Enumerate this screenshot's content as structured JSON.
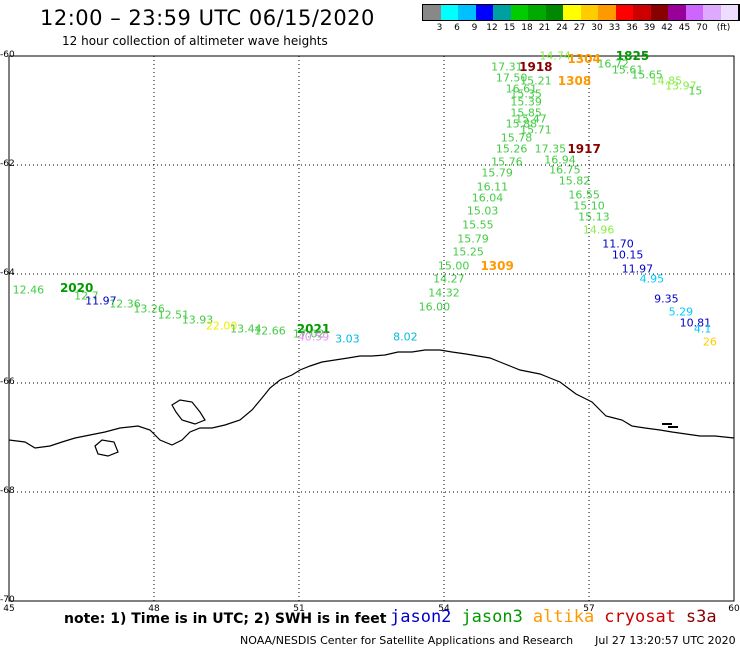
{
  "title": "12:00 – 23:59 UTC 06/15/2020",
  "subtitle": "12 hour collection of altimeter wave heights",
  "legend": {
    "colors": [
      "#888888",
      "#00ffff",
      "#00c0ff",
      "#0000ff",
      "#00a0a0",
      "#00cc00",
      "#00aa00",
      "#008800",
      "#ffff00",
      "#ffcc00",
      "#ff9900",
      "#ff0000",
      "#cc0000",
      "#880000",
      "#990099",
      "#cc66ff",
      "#ddaaff",
      "#eeddff",
      "#000000"
    ],
    "ticks": [
      "3",
      "6",
      "9",
      "12",
      "15",
      "18",
      "21",
      "24",
      "27",
      "30",
      "33",
      "36",
      "39",
      "42",
      "45",
      "70"
    ],
    "unit": "(ft)"
  },
  "axes": {
    "lon_ticks": [
      "45",
      "48",
      "51",
      "54",
      "57",
      "60"
    ],
    "lat_ticks": [
      "-60",
      "-62",
      "-64",
      "-66",
      "-68",
      "-70"
    ]
  },
  "note": "note: 1) Time is in UTC; 2) SWH is in feet",
  "satellites": [
    {
      "name": "jason2",
      "color": "#0000cc"
    },
    {
      "name": "jason3",
      "color": "#009900"
    },
    {
      "name": "altika",
      "color": "#ff9900"
    },
    {
      "name": "cryosat",
      "color": "#cc0000"
    },
    {
      "name": "s3a",
      "color": "#880000"
    }
  ],
  "credit": "NOAA/NESDIS Center for Satellite Applications and Research",
  "timestamp": "Jul 27 13:20:57 UTC 2020",
  "observations": [
    {
      "text": "12.46",
      "lon": 45.4,
      "lat": -64.3,
      "color": "#44cc44"
    },
    {
      "text": "2020",
      "lon": 46.4,
      "lat": -64.25,
      "color": "#009900",
      "bold": true
    },
    {
      "text": "12.7",
      "lon": 46.6,
      "lat": -64.4,
      "color": "#44cc44"
    },
    {
      "text": "11.97",
      "lon": 46.9,
      "lat": -64.5,
      "color": "#0000cc"
    },
    {
      "text": "12.36",
      "lon": 47.4,
      "lat": -64.55,
      "color": "#44cc44"
    },
    {
      "text": "13.26",
      "lon": 47.9,
      "lat": -64.65,
      "color": "#44cc44"
    },
    {
      "text": "12.51",
      "lon": 48.4,
      "lat": -64.75,
      "color": "#44cc44"
    },
    {
      "text": "13.93",
      "lon": 48.9,
      "lat": -64.85,
      "color": "#44cc44"
    },
    {
      "text": "22.00",
      "lon": 49.4,
      "lat": -64.95,
      "color": "#eeee00"
    },
    {
      "text": "13.44",
      "lon": 49.9,
      "lat": -65.0,
      "color": "#44cc44"
    },
    {
      "text": "12.66",
      "lon": 50.4,
      "lat": -65.05,
      "color": "#44cc44"
    },
    {
      "text": "2021",
      "lon": 51.3,
      "lat": -65.0,
      "color": "#009900",
      "bold": true
    },
    {
      "text": "17.02",
      "lon": 51.2,
      "lat": -65.1,
      "color": "#44cc44"
    },
    {
      "text": "40.59",
      "lon": 51.3,
      "lat": -65.15,
      "color": "#ee88ff"
    },
    {
      "text": "3.03",
      "lon": 52.0,
      "lat": -65.2,
      "color": "#00bbdd"
    },
    {
      "text": "8.02",
      "lon": 53.2,
      "lat": -65.15,
      "color": "#00bbdd"
    },
    {
      "text": "16.00",
      "lon": 53.8,
      "lat": -64.6,
      "color": "#44cc44"
    },
    {
      "text": "14.32",
      "lon": 54.0,
      "lat": -64.35,
      "color": "#44cc44"
    },
    {
      "text": "14.27",
      "lon": 54.1,
      "lat": -64.1,
      "color": "#44cc44"
    },
    {
      "text": "15.00",
      "lon": 54.2,
      "lat": -63.85,
      "color": "#44cc44"
    },
    {
      "text": "1309",
      "lon": 55.1,
      "lat": -63.85,
      "color": "#ff9900",
      "bold": true
    },
    {
      "text": "15.25",
      "lon": 54.5,
      "lat": -63.6,
      "color": "#44cc44"
    },
    {
      "text": "15.79",
      "lon": 54.6,
      "lat": -63.35,
      "color": "#44cc44"
    },
    {
      "text": "15.55",
      "lon": 54.7,
      "lat": -63.1,
      "color": "#44cc44"
    },
    {
      "text": "15.03",
      "lon": 54.8,
      "lat": -62.85,
      "color": "#44cc44"
    },
    {
      "text": "16.04",
      "lon": 54.9,
      "lat": -62.6,
      "color": "#44cc44"
    },
    {
      "text": "16.11",
      "lon": 55.0,
      "lat": -62.4,
      "color": "#44cc44"
    },
    {
      "text": "15.79",
      "lon": 55.1,
      "lat": -62.15,
      "color": "#44cc44"
    },
    {
      "text": "15.76",
      "lon": 55.3,
      "lat": -61.95,
      "color": "#44cc44"
    },
    {
      "text": "15.26",
      "lon": 55.4,
      "lat": -61.7,
      "color": "#44cc44"
    },
    {
      "text": "15.78",
      "lon": 55.5,
      "lat": -61.5,
      "color": "#44cc44"
    },
    {
      "text": "15.88",
      "lon": 55.6,
      "lat": -61.25,
      "color": "#44cc44"
    },
    {
      "text": "15.85",
      "lon": 55.7,
      "lat": -61.05,
      "color": "#44cc44"
    },
    {
      "text": "15.71",
      "lon": 55.9,
      "lat": -61.35,
      "color": "#44cc44"
    },
    {
      "text": "15.47",
      "lon": 55.8,
      "lat": -61.15,
      "color": "#44cc44"
    },
    {
      "text": "15.39",
      "lon": 55.7,
      "lat": -60.85,
      "color": "#44cc44"
    },
    {
      "text": "15.35",
      "lon": 55.7,
      "lat": -60.7,
      "color": "#44cc44"
    },
    {
      "text": "16.61",
      "lon": 55.6,
      "lat": -60.6,
      "color": "#44cc44"
    },
    {
      "text": "15.21",
      "lon": 55.9,
      "lat": -60.45,
      "color": "#44cc44"
    },
    {
      "text": "17.50",
      "lon": 55.4,
      "lat": -60.4,
      "color": "#44cc44"
    },
    {
      "text": "17.31",
      "lon": 55.3,
      "lat": -60.2,
      "color": "#44cc44"
    },
    {
      "text": "1918",
      "lon": 55.9,
      "lat": -60.2,
      "color": "#880000",
      "bold": true
    },
    {
      "text": "14.74",
      "lon": 56.3,
      "lat": -60.0,
      "color": "#88ee44"
    },
    {
      "text": "1308",
      "lon": 56.7,
      "lat": -60.45,
      "color": "#ff9900",
      "bold": true
    },
    {
      "text": "1304",
      "lon": 56.9,
      "lat": -60.05,
      "color": "#ff9900",
      "bold": true
    },
    {
      "text": "1825",
      "lon": 57.9,
      "lat": -60.0,
      "color": "#009900",
      "bold": true
    },
    {
      "text": "16.72",
      "lon": 57.5,
      "lat": -60.15,
      "color": "#44cc44"
    },
    {
      "text": "15.61",
      "lon": 57.8,
      "lat": -60.25,
      "color": "#44cc44"
    },
    {
      "text": "15.65",
      "lon": 58.2,
      "lat": -60.35,
      "color": "#44cc44"
    },
    {
      "text": "14.85",
      "lon": 58.6,
      "lat": -60.45,
      "color": "#88ee44"
    },
    {
      "text": "13.97",
      "lon": 58.9,
      "lat": -60.55,
      "color": "#88ee44"
    },
    {
      "text": "15",
      "lon": 59.2,
      "lat": -60.65,
      "color": "#44cc44"
    },
    {
      "text": "17.35",
      "lon": 56.2,
      "lat": -61.7,
      "color": "#44cc44"
    },
    {
      "text": "1917",
      "lon": 56.9,
      "lat": -61.7,
      "color": "#880000",
      "bold": true
    },
    {
      "text": "16.94",
      "lon": 56.4,
      "lat": -61.9,
      "color": "#44cc44"
    },
    {
      "text": "16.75",
      "lon": 56.5,
      "lat": -62.1,
      "color": "#44cc44"
    },
    {
      "text": "15.82",
      "lon": 56.7,
      "lat": -62.3,
      "color": "#44cc44"
    },
    {
      "text": "16.55",
      "lon": 56.9,
      "lat": -62.55,
      "color": "#44cc44"
    },
    {
      "text": "15.10",
      "lon": 57.0,
      "lat": -62.75,
      "color": "#44cc44"
    },
    {
      "text": "15.13",
      "lon": 57.1,
      "lat": -62.95,
      "color": "#44cc44"
    },
    {
      "text": "14.96",
      "lon": 57.2,
      "lat": -63.2,
      "color": "#88ee44"
    },
    {
      "text": "11.70",
      "lon": 57.6,
      "lat": -63.45,
      "color": "#0000cc"
    },
    {
      "text": "10.15",
      "lon": 57.8,
      "lat": -63.65,
      "color": "#0000cc"
    },
    {
      "text": "11.97",
      "lon": 58.0,
      "lat": -63.9,
      "color": "#0000cc"
    },
    {
      "text": "4.95",
      "lon": 58.3,
      "lat": -64.1,
      "color": "#00ccff"
    },
    {
      "text": "9.35",
      "lon": 58.6,
      "lat": -64.45,
      "color": "#0000cc"
    },
    {
      "text": "5.29",
      "lon": 58.9,
      "lat": -64.7,
      "color": "#00ccff"
    },
    {
      "text": "10.81",
      "lon": 59.2,
      "lat": -64.9,
      "color": "#0000cc"
    },
    {
      "text": "4.1",
      "lon": 59.35,
      "lat": -65.0,
      "color": "#00ccff"
    },
    {
      "text": "26",
      "lon": 59.5,
      "lat": -65.25,
      "color": "#ffcc00"
    }
  ]
}
